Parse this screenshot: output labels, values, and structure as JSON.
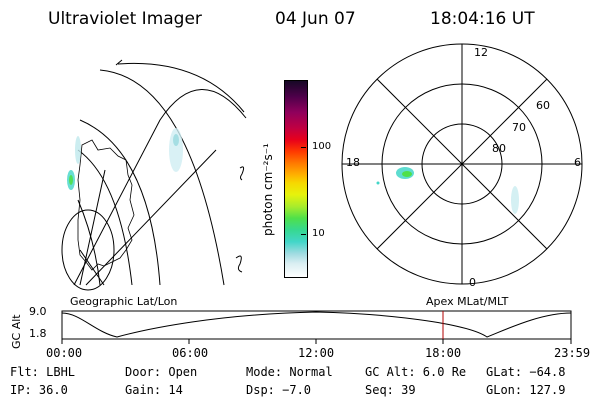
{
  "header": {
    "instrument": "Ultraviolet Imager",
    "date": "04 Jun 07",
    "time": "18:04:16 UT"
  },
  "colorbar": {
    "label": "photon cm⁻²s⁻¹",
    "ticks": [
      "100",
      "10"
    ],
    "gradient": [
      "#ffffff",
      "#9fdbe1",
      "#42d6c8",
      "#4fe04a",
      "#e6f30c",
      "#ffb200",
      "#ff3a00",
      "#c00042",
      "#4e004a",
      "#170826"
    ]
  },
  "polar_plot": {
    "mlt_labels": {
      "top": "12",
      "left": "18",
      "right": "6",
      "bottom": "0"
    },
    "lat_labels": [
      "60",
      "70",
      "80"
    ]
  },
  "panel_labels": {
    "left": "Geographic Lat/Lon",
    "right": "Apex MLat/MLT"
  },
  "altitude_plot": {
    "axis_label": "GC Alt",
    "y_ticks": [
      "9.0",
      "1.8"
    ],
    "x_ticks": [
      "00:00",
      "06:00",
      "12:00",
      "18:00",
      "23:59"
    ],
    "marker_time": "18:04",
    "marker_color": "#b00000"
  },
  "status": {
    "flt": "Flt: LBHL",
    "door": "Door: Open",
    "mode": "Mode: Normal",
    "gc_alt": "GC Alt: 6.0 Re",
    "glat": "GLat: −64.8",
    "ip": "IP: 36.0",
    "gain": "Gain: 14",
    "dsp": "Dsp:  −7.0",
    "seq": "Seq: 39",
    "glon": "GLon: 127.9"
  }
}
